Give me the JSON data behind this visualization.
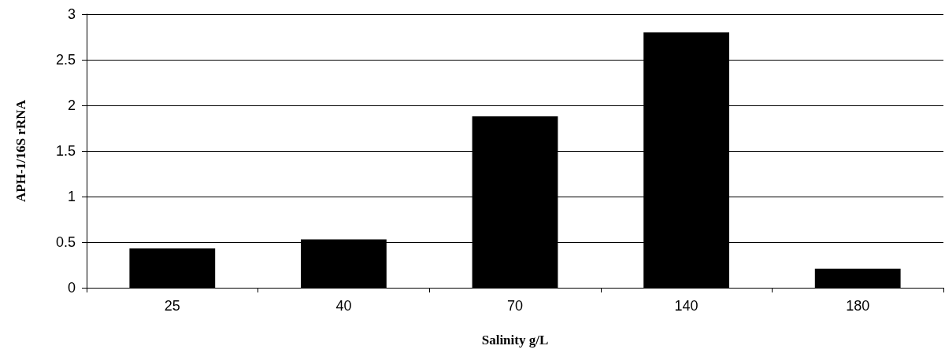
{
  "chart_data": {
    "type": "bar",
    "xlabel": "Salinity g/L",
    "ylabel": "APH-1/16S rRNA",
    "categories": [
      "25",
      "40",
      "70",
      "140",
      "180"
    ],
    "values": [
      0.43,
      0.53,
      1.88,
      2.8,
      0.21
    ],
    "color": "#000000",
    "ylim": [
      0,
      3
    ],
    "yticks": [
      0,
      0.5,
      1,
      1.5,
      2,
      2.5,
      3
    ],
    "grid": "y"
  }
}
